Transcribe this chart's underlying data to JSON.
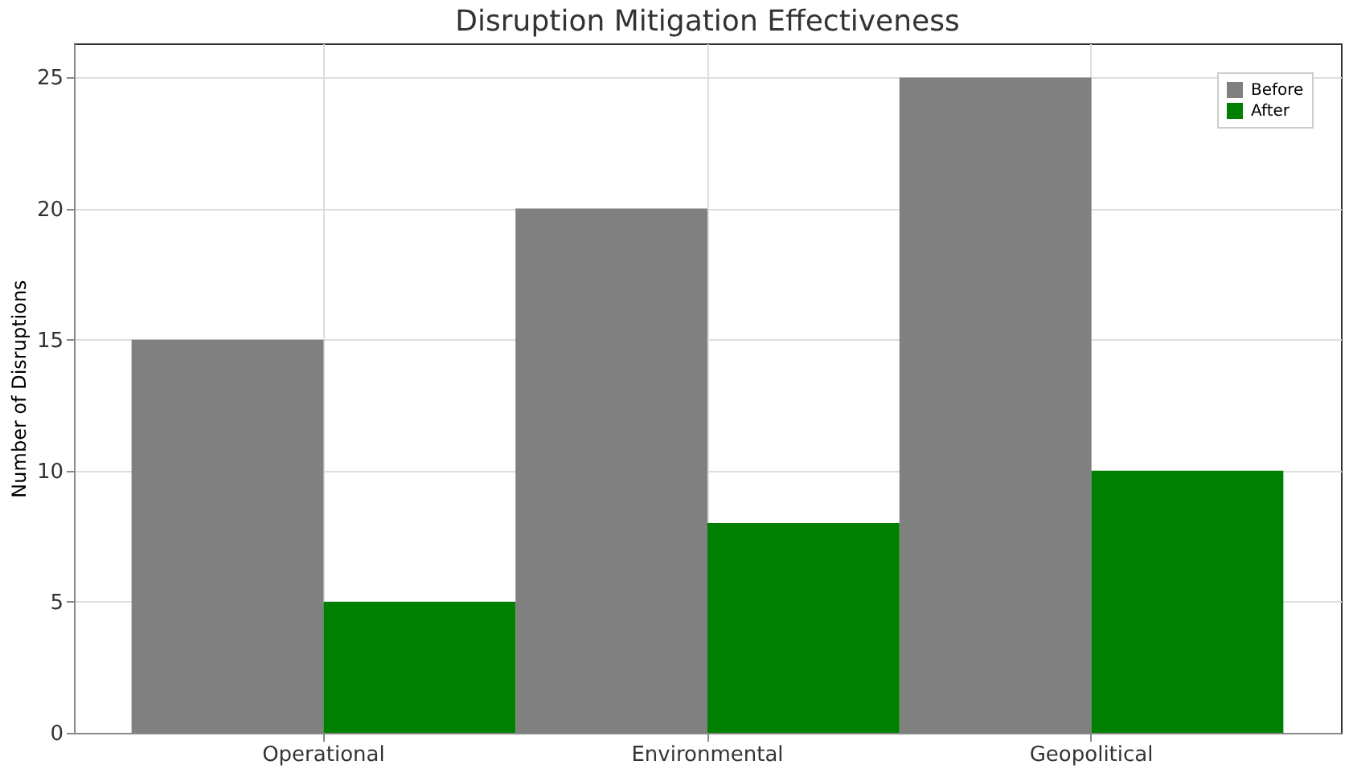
{
  "chart_data": {
    "type": "bar",
    "title": "Disruption Mitigation Effectiveness",
    "ylabel": "Number of Disruptions",
    "categories": [
      "Operational",
      "Environmental",
      "Geopolitical"
    ],
    "series": [
      {
        "name": "Before",
        "color": "#808080",
        "values": [
          15,
          20,
          25
        ]
      },
      {
        "name": "After",
        "color": "#008000",
        "values": [
          5,
          8,
          10
        ]
      }
    ],
    "ylim": [
      0,
      26.3
    ],
    "yticks": [
      0,
      5,
      10,
      15,
      20,
      25
    ],
    "grid": true,
    "legend": "top right"
  }
}
